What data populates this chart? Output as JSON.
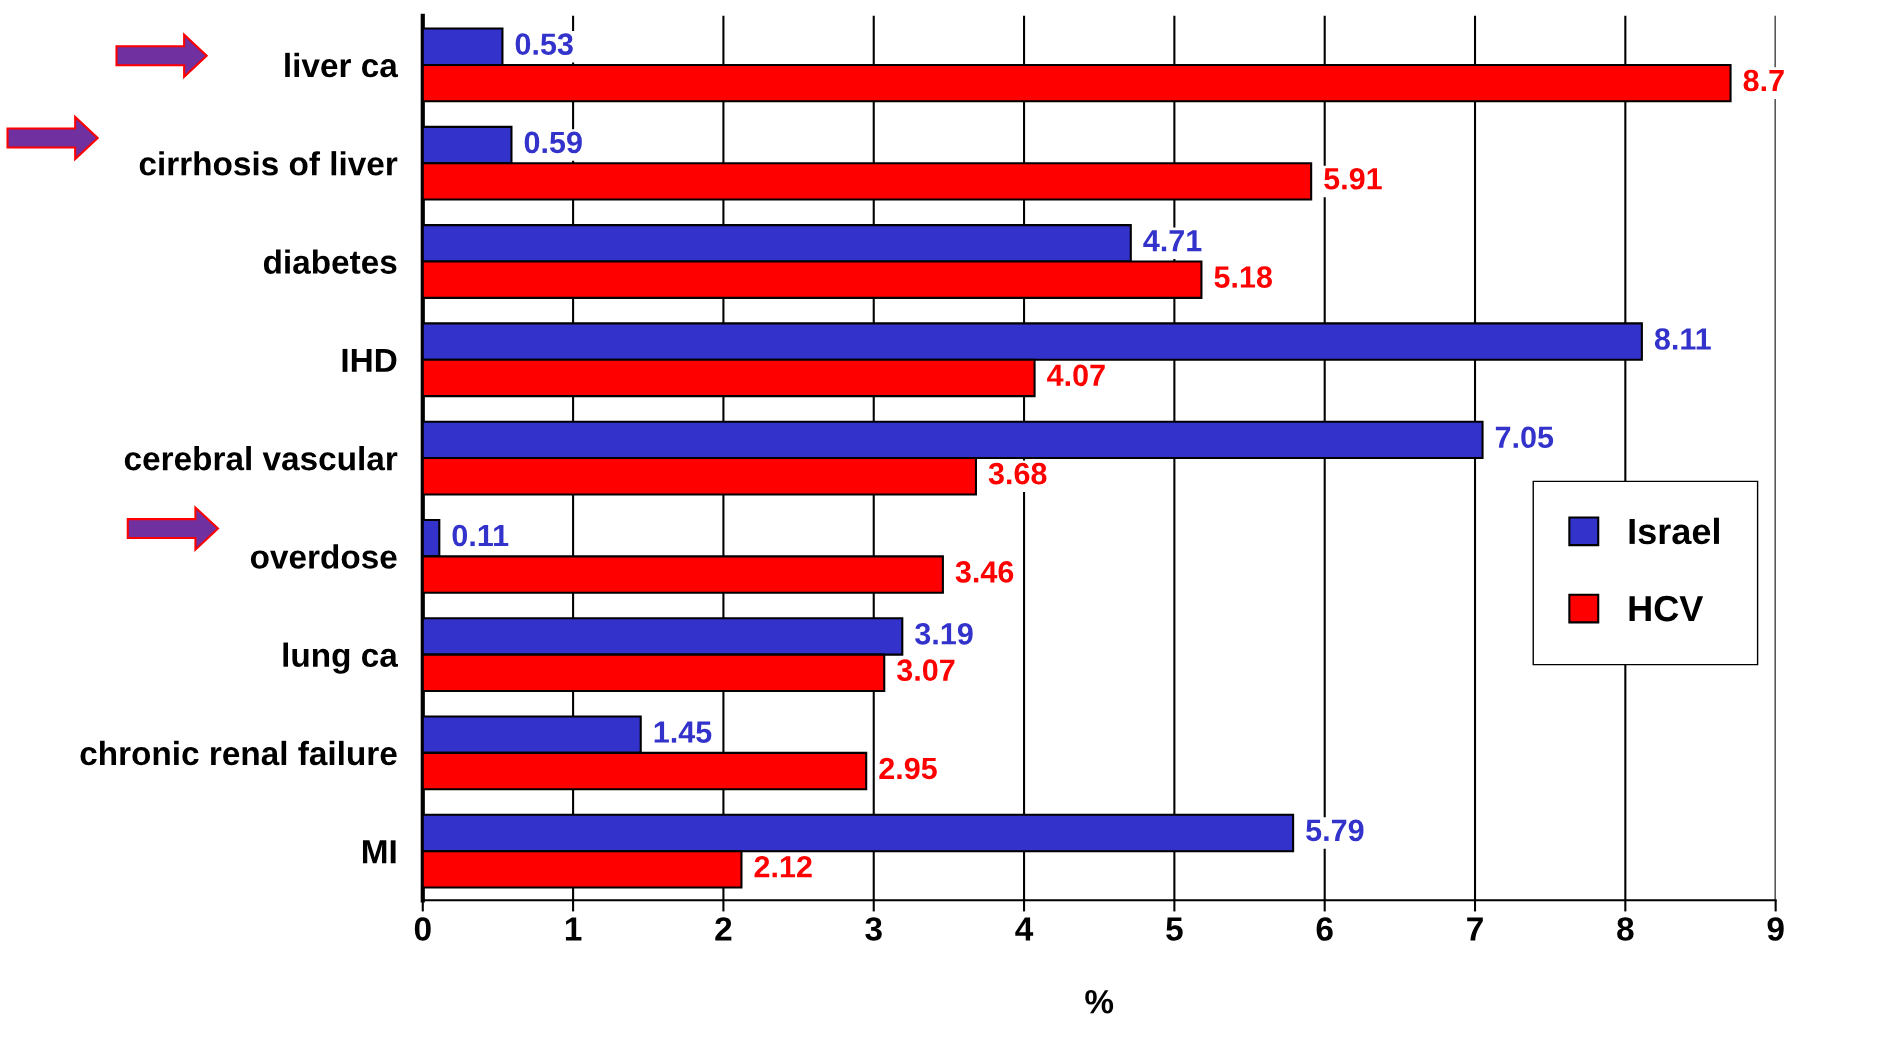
{
  "chart_data": {
    "type": "bar",
    "orientation": "horizontal",
    "xlabel": "%",
    "categories": [
      "liver ca",
      "cirrhosis of liver",
      "diabetes",
      "IHD",
      "cerebral vascular",
      "overdose",
      "lung ca",
      "chronic renal failure",
      "MI"
    ],
    "series": [
      {
        "name": "Israel",
        "color": "#3333cc",
        "values": [
          0.53,
          0.59,
          4.71,
          8.11,
          7.05,
          0.11,
          3.19,
          1.45,
          5.79
        ]
      },
      {
        "name": "HCV",
        "color": "#ff0000",
        "values": [
          8.7,
          5.91,
          5.18,
          4.07,
          3.68,
          3.46,
          3.07,
          2.95,
          2.12
        ]
      }
    ],
    "xlim": [
      0,
      9
    ],
    "xticks": [
      0,
      1,
      2,
      3,
      4,
      5,
      6,
      7,
      8,
      9
    ],
    "grid": "x",
    "legend": "right",
    "data_labels": true
  }
}
